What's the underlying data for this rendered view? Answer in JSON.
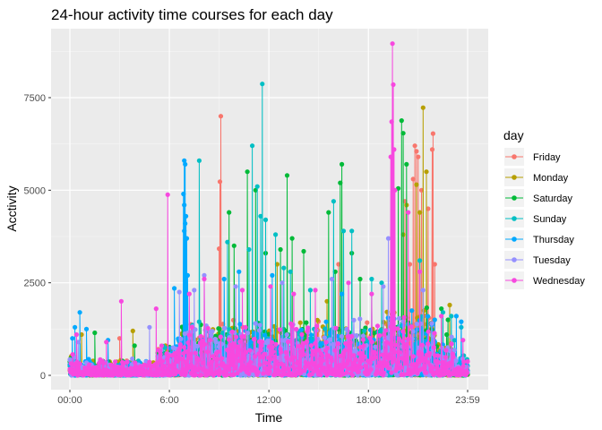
{
  "chart_data": {
    "type": "line",
    "title": "24-hour activity time courses for each day",
    "xlabel": "Time",
    "ylabel": "Acctivity",
    "x_ticks": [
      {
        "label": "00:00",
        "value": 0
      },
      {
        "label": "6:00",
        "value": 6
      },
      {
        "label": "12:00",
        "value": 12
      },
      {
        "label": "18:00",
        "value": 18
      },
      {
        "label": "23:59",
        "value": 23.983
      }
    ],
    "y_ticks": [
      0,
      2500,
      5000,
      7500
    ],
    "xlim": [
      -0.6,
      25.0
    ],
    "ylim": [
      -300,
      9300
    ],
    "legend_title": "day",
    "legend_position": "right",
    "grid": true,
    "series": [
      {
        "name": "Friday",
        "color": "#F8766D",
        "peaks": [
          [
            9.1,
            7000
          ],
          [
            9.05,
            5230
          ],
          [
            9.0,
            3420
          ],
          [
            20.8,
            6200
          ],
          [
            20.9,
            6050
          ],
          [
            21.0,
            5900
          ],
          [
            20.7,
            5300
          ],
          [
            21.2,
            5000
          ],
          [
            21.6,
            4500
          ],
          [
            21.9,
            6530
          ],
          [
            21.85,
            6100
          ],
          [
            22.0,
            3000
          ],
          [
            20.2,
            4700
          ],
          [
            20.5,
            3000
          ],
          [
            16.2,
            3000
          ],
          [
            3.0,
            1000
          ]
        ]
      },
      {
        "name": "Monday",
        "color": "#B79F00",
        "peaks": [
          [
            20.3,
            4600
          ],
          [
            21.3,
            7230
          ],
          [
            20.9,
            5150
          ],
          [
            21.5,
            5500
          ],
          [
            21.1,
            4400
          ],
          [
            20.1,
            3800
          ],
          [
            12.5,
            3000
          ],
          [
            0.7,
            1100
          ],
          [
            3.8,
            1200
          ],
          [
            22.9,
            1900
          ],
          [
            15.5,
            2000
          ]
        ]
      },
      {
        "name": "Saturday",
        "color": "#00BA38",
        "peaks": [
          [
            20.0,
            6880
          ],
          [
            20.1,
            6540
          ],
          [
            19.8,
            5050
          ],
          [
            20.3,
            5700
          ],
          [
            16.4,
            5700
          ],
          [
            16.3,
            5200
          ],
          [
            13.1,
            5400
          ],
          [
            13.4,
            3700
          ],
          [
            10.7,
            5500
          ],
          [
            11.2,
            5000
          ],
          [
            9.6,
            4400
          ],
          [
            9.9,
            3500
          ],
          [
            11.8,
            3300
          ],
          [
            14.1,
            3350
          ],
          [
            15.6,
            4400
          ],
          [
            17.0,
            3300
          ],
          [
            17.5,
            2600
          ],
          [
            22.4,
            1800
          ],
          [
            22.8,
            1500
          ],
          [
            1.5,
            1150
          ],
          [
            3.9,
            800
          ],
          [
            16.0,
            2800
          ],
          [
            12.7,
            3400
          ]
        ]
      },
      {
        "name": "Sunday",
        "color": "#00BFC4",
        "peaks": [
          [
            11.6,
            7870
          ],
          [
            11.0,
            6200
          ],
          [
            11.3,
            5100
          ],
          [
            11.5,
            4300
          ],
          [
            11.8,
            4200
          ],
          [
            7.8,
            5800
          ],
          [
            9.5,
            3600
          ],
          [
            10.8,
            3400
          ],
          [
            12.4,
            3800
          ],
          [
            12.9,
            2900
          ],
          [
            13.3,
            2800
          ],
          [
            15.9,
            4700
          ],
          [
            16.5,
            3900
          ],
          [
            17.0,
            3900
          ],
          [
            18.2,
            2600
          ],
          [
            18.8,
            2500
          ],
          [
            21.1,
            3100
          ],
          [
            22.5,
            1700
          ],
          [
            23.0,
            1600
          ],
          [
            23.6,
            1300
          ],
          [
            14.5,
            2300
          ]
        ]
      },
      {
        "name": "Thursday",
        "color": "#00A9FF",
        "peaks": [
          [
            6.9,
            5800
          ],
          [
            6.95,
            5700
          ],
          [
            6.85,
            4900
          ],
          [
            6.9,
            4600
          ],
          [
            7.0,
            4300
          ],
          [
            6.95,
            4100
          ],
          [
            6.9,
            3900
          ],
          [
            7.05,
            3700
          ],
          [
            7.1,
            2700
          ],
          [
            0.3,
            1300
          ],
          [
            0.6,
            1700
          ],
          [
            1.0,
            1250
          ],
          [
            2.3,
            950
          ],
          [
            6.3,
            2350
          ],
          [
            9.3,
            2600
          ],
          [
            10.2,
            2800
          ],
          [
            12.2,
            2700
          ],
          [
            16.4,
            2200
          ],
          [
            22.0,
            1500
          ],
          [
            23.3,
            1600
          ],
          [
            23.6,
            1450
          ],
          [
            0.15,
            1000
          ]
        ]
      },
      {
        "name": "Tuesday",
        "color": "#9590FF",
        "peaks": [
          [
            19.2,
            3700
          ],
          [
            7.5,
            2300
          ],
          [
            8.1,
            2700
          ],
          [
            10.0,
            2400
          ],
          [
            12.8,
            2500
          ],
          [
            15.8,
            2600
          ],
          [
            18.9,
            2400
          ],
          [
            21.3,
            2300
          ],
          [
            4.8,
            1300
          ],
          [
            6.6,
            2250
          ],
          [
            0.5,
            900
          ]
        ]
      },
      {
        "name": "Wednesday",
        "color": "#F748DF",
        "peaks": [
          [
            19.45,
            8960
          ],
          [
            19.5,
            7850
          ],
          [
            19.4,
            6850
          ],
          [
            19.55,
            6100
          ],
          [
            19.35,
            5900
          ],
          [
            19.6,
            5000
          ],
          [
            5.9,
            4880
          ],
          [
            3.1,
            2000
          ],
          [
            5.2,
            1800
          ],
          [
            7.2,
            2200
          ],
          [
            8.1,
            2600
          ],
          [
            10.4,
            2300
          ],
          [
            12.1,
            2400
          ],
          [
            13.5,
            2200
          ],
          [
            14.8,
            2300
          ],
          [
            16.8,
            2500
          ],
          [
            18.2,
            2200
          ],
          [
            21.1,
            2800
          ],
          [
            22.4,
            1600
          ],
          [
            23.7,
            950
          ],
          [
            2.2,
            900
          ],
          [
            0.4,
            1100
          ],
          [
            20.4,
            4400
          ]
        ]
      }
    ]
  }
}
